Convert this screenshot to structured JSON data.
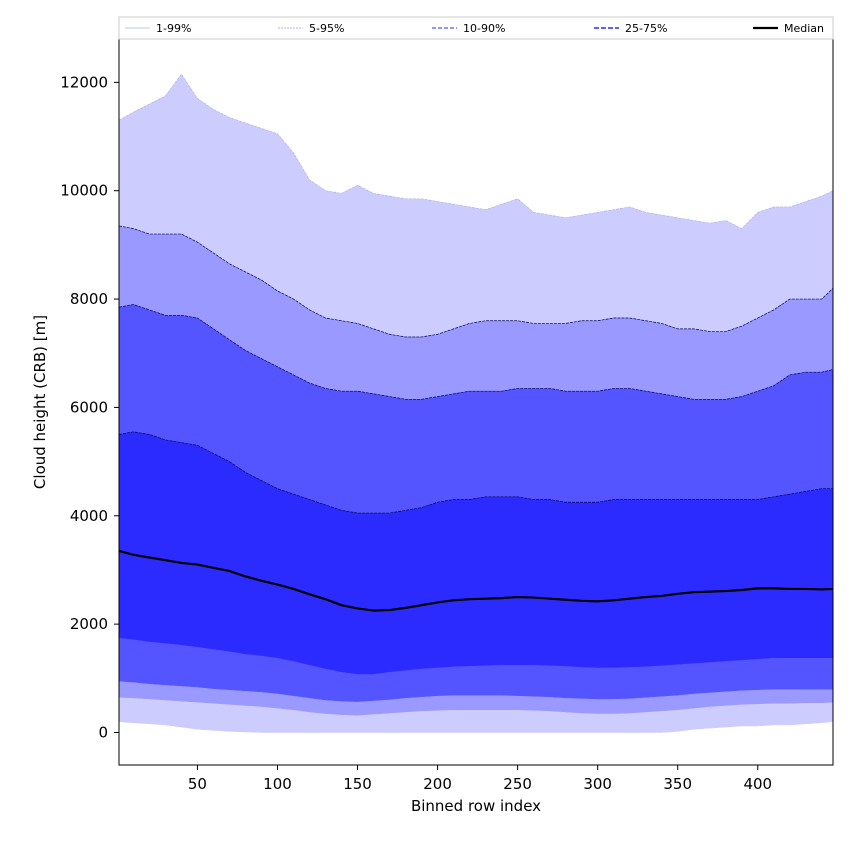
{
  "chart_data": {
    "type": "area",
    "title": "",
    "xlabel": "Binned row index",
    "ylabel": "Cloud height (CRB) [m]",
    "xlim": [
      1,
      447
    ],
    "ylim": [
      -600,
      12800
    ],
    "xticks": [
      50,
      100,
      150,
      200,
      250,
      300,
      350,
      400
    ],
    "yticks": [
      0,
      2000,
      4000,
      6000,
      8000,
      10000,
      12000
    ],
    "grid": false,
    "legend_position": "top",
    "x": [
      1,
      10,
      20,
      30,
      40,
      50,
      60,
      70,
      80,
      90,
      100,
      110,
      120,
      130,
      140,
      150,
      160,
      170,
      180,
      190,
      200,
      210,
      220,
      230,
      240,
      250,
      260,
      270,
      280,
      290,
      300,
      310,
      320,
      330,
      340,
      350,
      360,
      370,
      380,
      390,
      400,
      410,
      420,
      430,
      440,
      447
    ],
    "series": [
      {
        "name": "1-99%",
        "color": "#ccccff",
        "line_color": "#b3b3e6",
        "lower": [
          200,
          180,
          160,
          140,
          100,
          60,
          40,
          20,
          10,
          0,
          0,
          0,
          0,
          0,
          0,
          0,
          0,
          0,
          0,
          0,
          0,
          0,
          0,
          0,
          0,
          0,
          0,
          0,
          0,
          0,
          0,
          0,
          0,
          0,
          0,
          20,
          60,
          80,
          100,
          120,
          120,
          140,
          140,
          160,
          180,
          200
        ],
        "upper": [
          11300,
          11450,
          11600,
          11750,
          12150,
          11700,
          11500,
          11350,
          11250,
          11150,
          11050,
          10700,
          10200,
          10000,
          9950,
          10100,
          9950,
          9900,
          9850,
          9850,
          9800,
          9750,
          9700,
          9650,
          9750,
          9850,
          9600,
          9550,
          9500,
          9550,
          9600,
          9650,
          9700,
          9600,
          9550,
          9500,
          9450,
          9400,
          9450,
          9300,
          9600,
          9700,
          9700,
          9800,
          9900,
          10000
        ]
      },
      {
        "name": "5-95%",
        "color": "#9999ff",
        "line_color": "#00005a",
        "lower": [
          650,
          640,
          620,
          600,
          580,
          560,
          540,
          520,
          500,
          480,
          450,
          420,
          380,
          350,
          330,
          320,
          340,
          360,
          380,
          400,
          410,
          420,
          420,
          420,
          420,
          420,
          410,
          400,
          380,
          360,
          350,
          350,
          360,
          380,
          400,
          420,
          450,
          480,
          500,
          520,
          530,
          540,
          540,
          550,
          550,
          560
        ],
        "upper": [
          9350,
          9300,
          9200,
          9200,
          9200,
          9050,
          8850,
          8650,
          8500,
          8350,
          8150,
          8000,
          7800,
          7650,
          7600,
          7550,
          7450,
          7350,
          7300,
          7300,
          7350,
          7450,
          7550,
          7600,
          7600,
          7600,
          7550,
          7550,
          7550,
          7600,
          7600,
          7650,
          7650,
          7600,
          7550,
          7450,
          7450,
          7400,
          7400,
          7500,
          7650,
          7800,
          8000,
          8000,
          8000,
          8200
        ]
      },
      {
        "name": "10-90%",
        "color": "#5555ff",
        "line_color": "#00005a",
        "lower": [
          950,
          930,
          900,
          880,
          860,
          840,
          810,
          790,
          770,
          750,
          720,
          680,
          640,
          600,
          580,
          570,
          590,
          610,
          640,
          660,
          680,
          690,
          690,
          690,
          690,
          680,
          670,
          660,
          640,
          630,
          620,
          620,
          630,
          650,
          670,
          690,
          720,
          740,
          760,
          780,
          790,
          800,
          800,
          800,
          800,
          800
        ],
        "upper": [
          7850,
          7900,
          7800,
          7700,
          7700,
          7650,
          7450,
          7250,
          7050,
          6900,
          6750,
          6600,
          6450,
          6350,
          6300,
          6300,
          6250,
          6200,
          6150,
          6150,
          6200,
          6250,
          6300,
          6300,
          6300,
          6350,
          6350,
          6350,
          6300,
          6300,
          6300,
          6350,
          6350,
          6300,
          6250,
          6200,
          6150,
          6150,
          6150,
          6200,
          6300,
          6400,
          6600,
          6650,
          6650,
          6700
        ]
      },
      {
        "name": "25-75%",
        "color": "#2b2bff",
        "line_color": "#00005a",
        "lower": [
          1750,
          1720,
          1680,
          1650,
          1620,
          1580,
          1540,
          1500,
          1450,
          1420,
          1380,
          1320,
          1250,
          1180,
          1120,
          1080,
          1080,
          1120,
          1150,
          1180,
          1200,
          1220,
          1230,
          1240,
          1250,
          1250,
          1250,
          1240,
          1230,
          1210,
          1200,
          1200,
          1210,
          1220,
          1240,
          1260,
          1280,
          1300,
          1320,
          1340,
          1360,
          1380,
          1380,
          1380,
          1380,
          1380
        ],
        "upper": [
          5500,
          5550,
          5500,
          5400,
          5350,
          5300,
          5150,
          5000,
          4800,
          4650,
          4500,
          4400,
          4300,
          4200,
          4100,
          4050,
          4050,
          4050,
          4100,
          4150,
          4250,
          4300,
          4300,
          4350,
          4350,
          4350,
          4300,
          4300,
          4250,
          4250,
          4250,
          4300,
          4300,
          4300,
          4300,
          4300,
          4300,
          4300,
          4300,
          4300,
          4300,
          4350,
          4400,
          4450,
          4500,
          4500
        ]
      },
      {
        "name": "Median",
        "color": "#000000",
        "values": [
          3350,
          3280,
          3230,
          3180,
          3130,
          3100,
          3040,
          2980,
          2880,
          2800,
          2730,
          2650,
          2550,
          2460,
          2350,
          2290,
          2250,
          2260,
          2300,
          2350,
          2400,
          2440,
          2460,
          2470,
          2480,
          2500,
          2490,
          2470,
          2450,
          2430,
          2420,
          2440,
          2470,
          2500,
          2520,
          2560,
          2590,
          2600,
          2610,
          2630,
          2660,
          2660,
          2650,
          2650,
          2640,
          2650
        ]
      }
    ]
  }
}
